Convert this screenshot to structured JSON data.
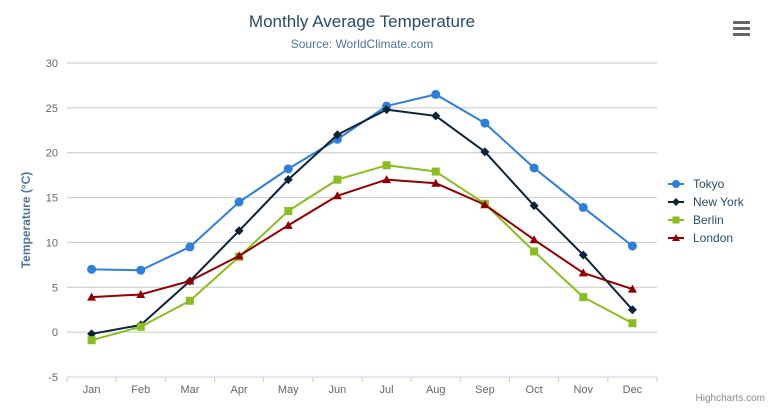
{
  "header": {
    "title": "Monthly Average Temperature",
    "subtitle": "Source: WorldClimate.com"
  },
  "chart_data": {
    "type": "line",
    "title": "Monthly Average Temperature",
    "subtitle": "Source: WorldClimate.com",
    "categories": [
      "Jan",
      "Feb",
      "Mar",
      "Apr",
      "May",
      "Jun",
      "Jul",
      "Aug",
      "Sep",
      "Oct",
      "Nov",
      "Dec"
    ],
    "series": [
      {
        "name": "Tokyo",
        "color": "#2f7ed8",
        "marker": "circle",
        "values": [
          7.0,
          6.9,
          9.5,
          14.5,
          18.2,
          21.5,
          25.2,
          26.5,
          23.3,
          18.3,
          13.9,
          9.6
        ]
      },
      {
        "name": "New York",
        "color": "#0d233a",
        "marker": "diamond",
        "values": [
          -0.2,
          0.8,
          5.7,
          11.3,
          17.0,
          22.0,
          24.8,
          24.1,
          20.1,
          14.1,
          8.6,
          2.5
        ]
      },
      {
        "name": "Berlin",
        "color": "#8bbc21",
        "marker": "square",
        "values": [
          -0.9,
          0.6,
          3.5,
          8.4,
          13.5,
          17.0,
          18.6,
          17.9,
          14.3,
          9.0,
          3.9,
          1.0
        ]
      },
      {
        "name": "London",
        "color": "#910000",
        "marker": "triangle",
        "values": [
          3.9,
          4.2,
          5.7,
          8.5,
          11.9,
          15.2,
          17.0,
          16.6,
          14.2,
          10.3,
          6.6,
          4.8
        ]
      }
    ],
    "xlabel": "",
    "ylabel": "Temperature (°C)",
    "ylim": [
      -5,
      30
    ],
    "yticks": [
      -5,
      0,
      5,
      10,
      15,
      20,
      25,
      30
    ],
    "grid": true,
    "legend_position": "right",
    "colors": {
      "grid_line": "#c8c8c8",
      "axis_line": "#c0d0e0",
      "axis_label": "#666666",
      "axis_title": "#4d759e",
      "title": "#274b6d",
      "subtitle": "#4d759e",
      "legend_text": "#274b6d"
    }
  },
  "footer": {
    "credits": "Highcharts.com"
  },
  "menu": {
    "icon_name": "hamburger-menu-icon"
  }
}
